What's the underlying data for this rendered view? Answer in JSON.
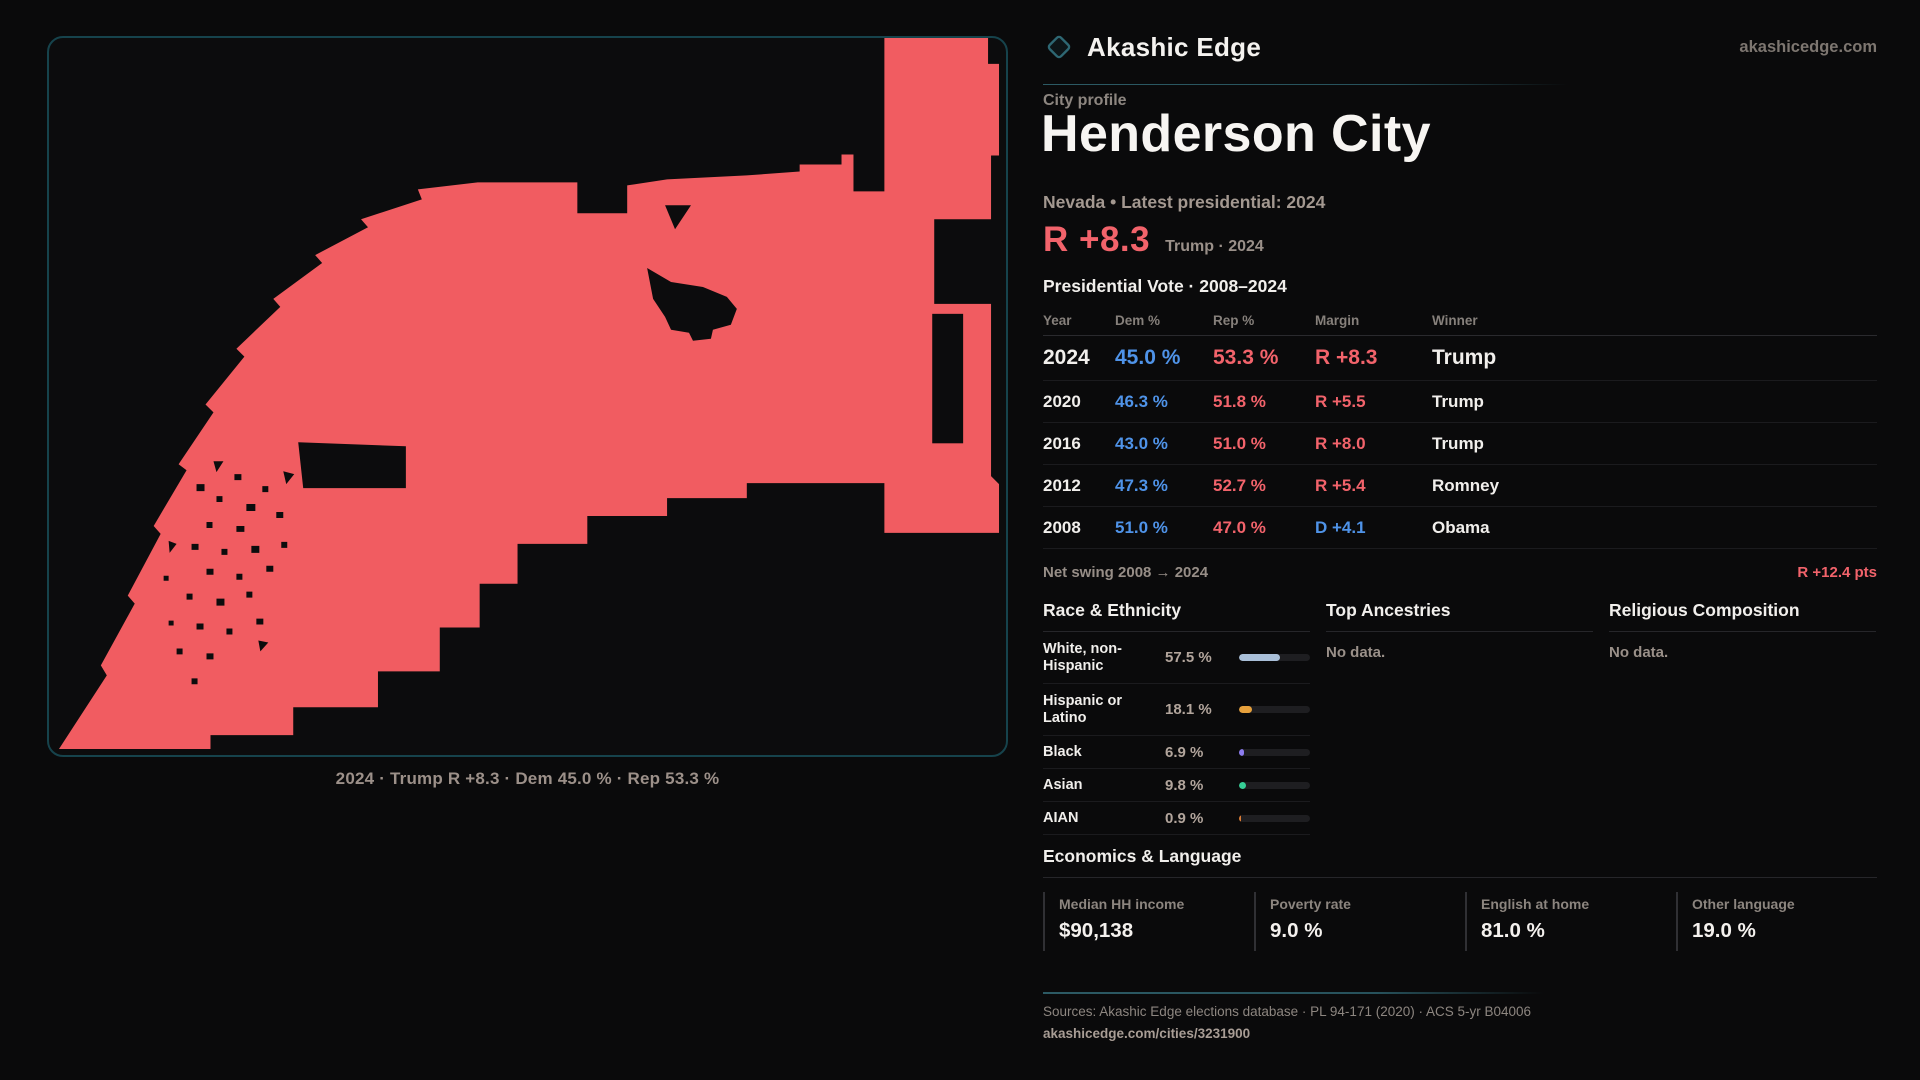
{
  "brand": {
    "name": "Akashic Edge",
    "domain": "akashicedge.com"
  },
  "profile": {
    "eyebrow": "City profile",
    "title": "Henderson City",
    "subtitle": "Nevada • Latest presidential: 2024",
    "headline_margin": "R +8.3",
    "headline_note": "Trump · 2024"
  },
  "colors": {
    "accent_red": "#f2636b",
    "dem_blue": "#4f93e8",
    "map_fill": "#f15c61",
    "panel_border": "#16434c"
  },
  "map": {
    "caption": "2024 · Trump R +8.3 · Dem 45.0 % · Rep 53.3 %"
  },
  "pres_table": {
    "title": "Presidential Vote · 2008–2024",
    "headers": {
      "year": "Year",
      "dem": "Dem %",
      "rep": "Rep %",
      "margin": "Margin",
      "winner": "Winner"
    },
    "rows": [
      {
        "year": "2024",
        "dem": "45.0 %",
        "rep": "53.3 %",
        "margin": "R +8.3",
        "margin_party": "R",
        "winner": "Trump"
      },
      {
        "year": "2020",
        "dem": "46.3 %",
        "rep": "51.8 %",
        "margin": "R +5.5",
        "margin_party": "R",
        "winner": "Trump"
      },
      {
        "year": "2016",
        "dem": "43.0 %",
        "rep": "51.0 %",
        "margin": "R +8.0",
        "margin_party": "R",
        "winner": "Trump"
      },
      {
        "year": "2012",
        "dem": "47.3 %",
        "rep": "52.7 %",
        "margin": "R +5.4",
        "margin_party": "R",
        "winner": "Romney"
      },
      {
        "year": "2008",
        "dem": "51.0 %",
        "rep": "47.0 %",
        "margin": "D +4.1",
        "margin_party": "D",
        "winner": "Obama"
      }
    ],
    "net_swing_label": "Net swing 2008 → 2024",
    "net_swing_value": "R +12.4 pts"
  },
  "demographics": {
    "race": {
      "header": "Race & Ethnicity",
      "rows": [
        {
          "label": "White, non-Hispanic",
          "value": "57.5 %",
          "pct": 57.5,
          "color": "#a9bfd8"
        },
        {
          "label": "Hispanic or Latino",
          "value": "18.1 %",
          "pct": 18.1,
          "color": "#e7a13c"
        },
        {
          "label": "Black",
          "value": "6.9 %",
          "pct": 6.9,
          "color": "#8d7df0"
        },
        {
          "label": "Asian",
          "value": "9.8 %",
          "pct": 9.8,
          "color": "#36cf97"
        },
        {
          "label": "AIAN",
          "value": "0.9 %",
          "pct": 0.9,
          "color": "#d97b35"
        }
      ]
    },
    "ancestries": {
      "header": "Top Ancestries",
      "empty": "No data."
    },
    "religion": {
      "header": "Religious Composition",
      "empty": "No data."
    }
  },
  "economics": {
    "header": "Economics & Language",
    "stats": [
      {
        "label": "Median HH income",
        "value": "$90,138"
      },
      {
        "label": "Poverty rate",
        "value": "9.0 %"
      },
      {
        "label": "English at home",
        "value": "81.0 %"
      },
      {
        "label": "Other language",
        "value": "19.0 %"
      }
    ]
  },
  "footer": {
    "sources": "Sources: Akashic Edge elections database · PL 94-171 (2020) · ACS 5-yr B04006",
    "permalink": "akashicedge.com/cities/3231900"
  }
}
